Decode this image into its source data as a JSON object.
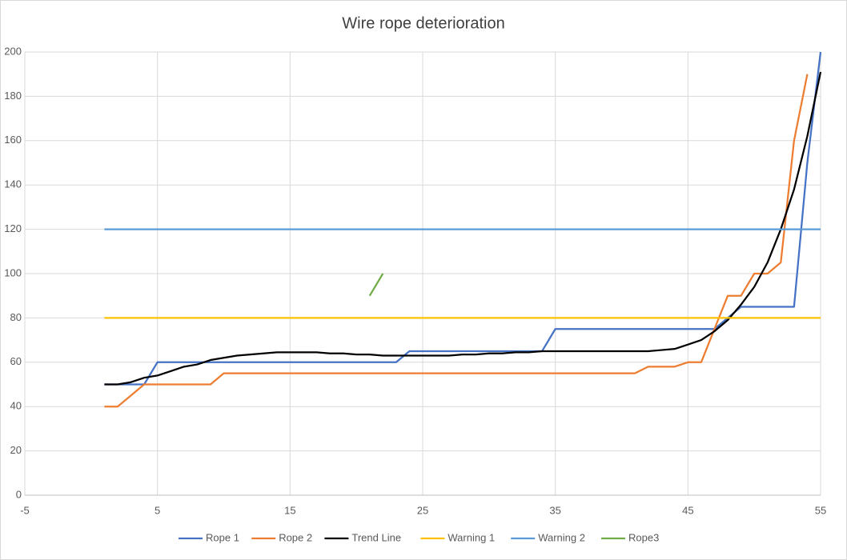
{
  "chart_data": {
    "type": "line",
    "title": "Wire rope deterioration",
    "x": [
      1,
      2,
      3,
      4,
      5,
      6,
      7,
      8,
      9,
      10,
      11,
      12,
      13,
      14,
      15,
      16,
      17,
      18,
      19,
      20,
      21,
      22,
      23,
      24,
      25,
      26,
      27,
      28,
      29,
      30,
      31,
      32,
      33,
      34,
      35,
      36,
      37,
      38,
      39,
      40,
      41,
      42,
      43,
      44,
      45,
      46,
      47,
      48,
      49,
      50,
      51,
      52,
      53,
      54,
      55
    ],
    "xlim": [
      -5,
      55
    ],
    "xticks": [
      -5,
      5,
      15,
      25,
      35,
      45,
      55
    ],
    "ylim": [
      0,
      200
    ],
    "yticks": [
      0,
      20,
      40,
      60,
      80,
      100,
      120,
      140,
      160,
      180,
      200
    ],
    "grid": true,
    "legend": "bottom",
    "series": [
      {
        "name": "Rope 1",
        "color": "#4472c4",
        "values": [
          50,
          50,
          50,
          50,
          60,
          60,
          60,
          60,
          60,
          60,
          60,
          60,
          60,
          60,
          60,
          60,
          60,
          60,
          60,
          60,
          60,
          60,
          60,
          65,
          65,
          65,
          65,
          65,
          65,
          65,
          65,
          65,
          65,
          65,
          75,
          75,
          75,
          75,
          75,
          75,
          75,
          75,
          75,
          75,
          75,
          75,
          75,
          80,
          85,
          85,
          85,
          85,
          85,
          150,
          200
        ]
      },
      {
        "name": "Rope 2",
        "color": "#ed7d31",
        "values": [
          40,
          40,
          45,
          50,
          50,
          50,
          50,
          50,
          50,
          55,
          55,
          55,
          55,
          55,
          55,
          55,
          55,
          55,
          55,
          55,
          55,
          55,
          55,
          55,
          55,
          55,
          55,
          55,
          55,
          55,
          55,
          55,
          55,
          55,
          55,
          55,
          55,
          55,
          55,
          55,
          55,
          58,
          58,
          58,
          60,
          60,
          75,
          90,
          90,
          100,
          100,
          105,
          160,
          190,
          null
        ]
      },
      {
        "name": "Trend Line",
        "color": "#000000",
        "values": [
          50,
          50,
          51,
          53,
          54,
          56,
          58,
          59,
          61,
          62,
          63,
          63.5,
          64,
          64.5,
          64.5,
          64.5,
          64.5,
          64,
          64,
          63.5,
          63.5,
          63,
          63,
          63,
          63,
          63,
          63,
          63.5,
          63.5,
          64,
          64,
          64.5,
          64.5,
          65,
          65,
          65,
          65,
          65,
          65,
          65,
          65,
          65,
          65.5,
          66,
          68,
          70,
          74,
          79,
          86,
          94,
          105,
          120,
          138,
          162,
          191
        ]
      },
      {
        "name": "Warning 1",
        "color": "#ffc000",
        "values": [
          80,
          80,
          80,
          80,
          80,
          80,
          80,
          80,
          80,
          80,
          80,
          80,
          80,
          80,
          80,
          80,
          80,
          80,
          80,
          80,
          80,
          80,
          80,
          80,
          80,
          80,
          80,
          80,
          80,
          80,
          80,
          80,
          80,
          80,
          80,
          80,
          80,
          80,
          80,
          80,
          80,
          80,
          80,
          80,
          80,
          80,
          80,
          80,
          80,
          80,
          80,
          80,
          80,
          80,
          80
        ]
      },
      {
        "name": "Warning 2",
        "color": "#5b9bd5",
        "values": [
          120,
          120,
          120,
          120,
          120,
          120,
          120,
          120,
          120,
          120,
          120,
          120,
          120,
          120,
          120,
          120,
          120,
          120,
          120,
          120,
          120,
          120,
          120,
          120,
          120,
          120,
          120,
          120,
          120,
          120,
          120,
          120,
          120,
          120,
          120,
          120,
          120,
          120,
          120,
          120,
          120,
          120,
          120,
          120,
          120,
          120,
          120,
          120,
          120,
          120,
          120,
          120,
          120,
          120,
          120
        ]
      },
      {
        "name": "Rope3",
        "color": "#70ad47",
        "values": [
          null,
          null,
          null,
          null,
          null,
          null,
          null,
          null,
          null,
          null,
          null,
          null,
          null,
          null,
          null,
          null,
          null,
          null,
          null,
          null,
          90,
          100,
          null,
          null,
          null,
          null,
          null,
          null,
          null,
          null,
          null,
          null,
          null,
          null,
          null,
          null,
          null,
          null,
          null,
          null,
          null,
          null,
          null,
          null,
          null,
          null,
          null,
          null,
          null,
          null,
          null,
          null,
          null,
          null,
          null
        ]
      }
    ]
  }
}
